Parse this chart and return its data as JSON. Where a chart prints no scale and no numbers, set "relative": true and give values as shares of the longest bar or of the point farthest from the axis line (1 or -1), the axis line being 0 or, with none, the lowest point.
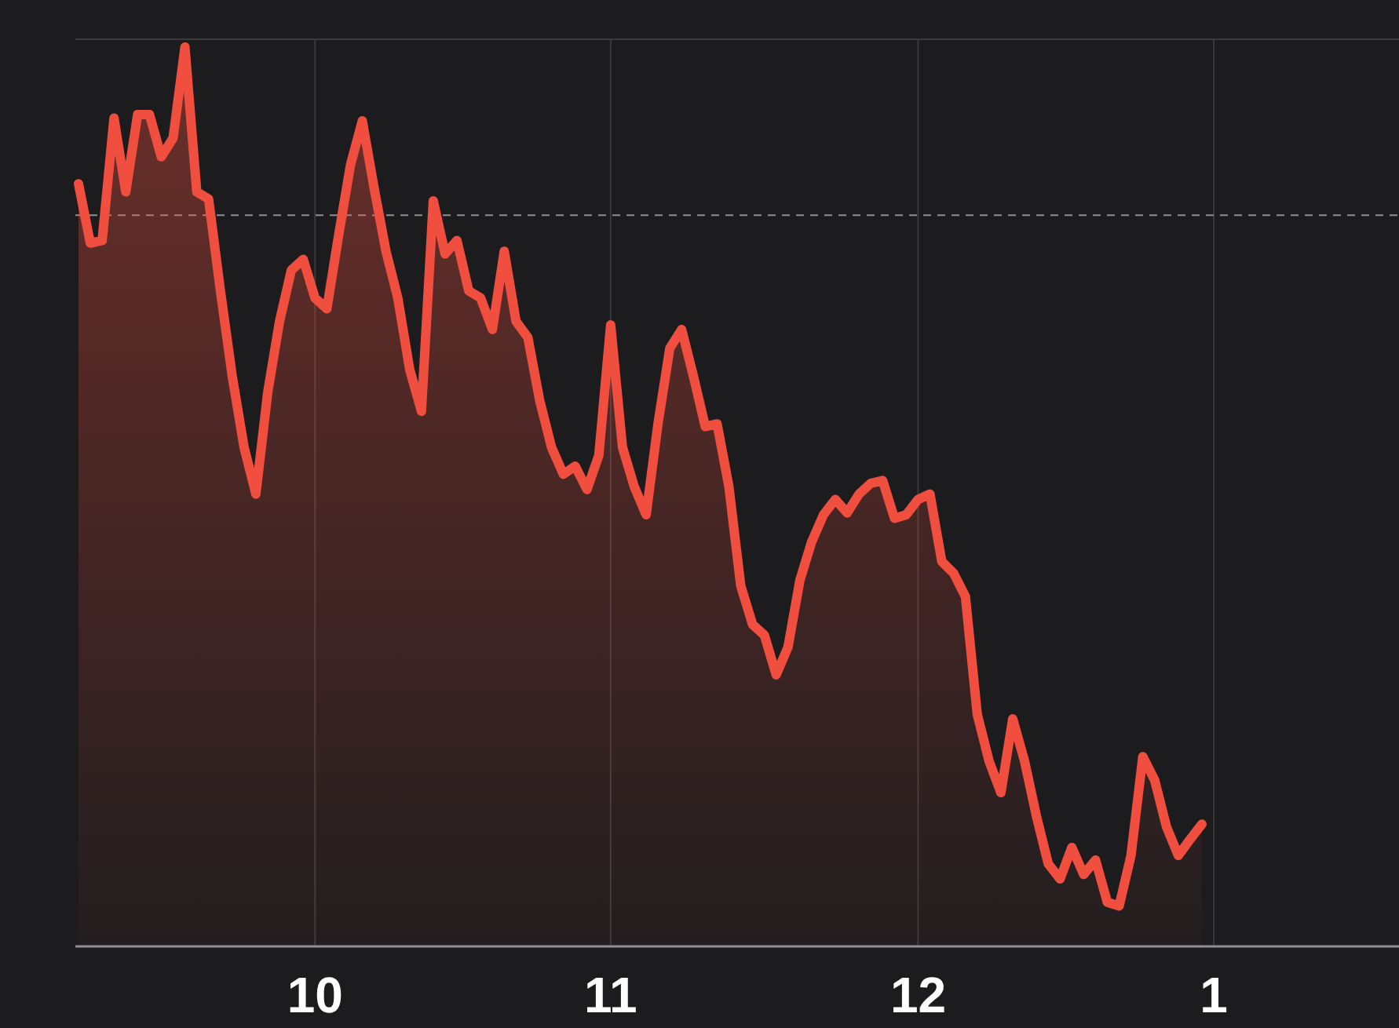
{
  "chart_data": {
    "type": "area",
    "relative": true,
    "categories": [
      null,
      null,
      null,
      null,
      null,
      null,
      null,
      null,
      null,
      null,
      null,
      null,
      null,
      null,
      null,
      null,
      null,
      null,
      null,
      null,
      "10",
      null,
      null,
      null,
      null,
      null,
      null,
      null,
      null,
      null,
      null,
      null,
      null,
      null,
      null,
      null,
      null,
      null,
      null,
      null,
      null,
      null,
      null,
      null,
      null,
      "11",
      null,
      null,
      null,
      null,
      null,
      null,
      null,
      null,
      null,
      null,
      null,
      null,
      null,
      null,
      null,
      null,
      null,
      null,
      null,
      null,
      null,
      null,
      null,
      null,
      null,
      "12",
      null,
      null,
      null,
      null,
      null,
      null,
      null,
      null,
      null,
      null,
      null,
      null,
      null,
      null,
      null,
      null,
      null,
      null,
      null,
      null,
      null,
      null,
      null,
      null,
      "1",
      null,
      null,
      null,
      null,
      null,
      null,
      null,
      null,
      null,
      null,
      null,
      null,
      null,
      null,
      null
    ],
    "series": [
      {
        "color": "#f04e3e",
        "values": [
          0.848,
          0.782,
          0.785,
          0.921,
          0.839,
          0.925,
          0.925,
          0.878,
          0.899,
          1.0,
          0.839,
          0.831,
          0.729,
          0.634,
          0.555,
          0.503,
          0.616,
          0.695,
          0.752,
          0.764,
          0.721,
          0.709,
          0.791,
          0.869,
          0.918,
          0.843,
          0.773,
          0.721,
          0.642,
          0.595,
          0.829,
          0.77,
          0.785,
          0.729,
          0.721,
          0.686,
          0.773,
          0.695,
          0.677,
          0.607,
          0.555,
          0.525,
          0.534,
          0.508,
          0.546,
          0.691,
          0.555,
          0.511,
          0.48,
          0.581,
          0.665,
          0.686,
          0.634,
          0.578,
          0.581,
          0.511,
          0.401,
          0.358,
          0.346,
          0.302,
          0.333,
          0.407,
          0.45,
          0.48,
          0.497,
          0.482,
          0.503,
          0.515,
          0.518,
          0.476,
          0.48,
          0.497,
          0.503,
          0.428,
          0.415,
          0.389,
          0.258,
          0.206,
          0.171,
          0.253,
          0.206,
          0.145,
          0.092,
          0.075,
          0.11,
          0.08,
          0.096,
          0.049,
          0.045,
          0.101,
          0.211,
          0.185,
          0.133,
          0.101,
          0.119,
          0.136,
          null,
          null,
          null,
          null,
          null,
          null,
          null,
          null,
          null,
          null,
          null,
          null,
          null,
          null,
          null,
          null
        ]
      }
    ],
    "ref_lines": [
      {
        "axis": "y",
        "value": 0.813,
        "line_style": "dashed",
        "color": "#8e8e93"
      }
    ],
    "grid": "x",
    "tick_labels": "x"
  }
}
